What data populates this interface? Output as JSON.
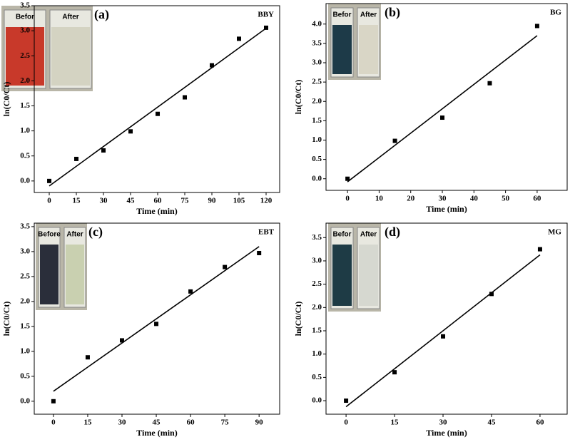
{
  "chart_data": [
    {
      "type": "scatter",
      "panel_label": "(a)",
      "name": "BBY",
      "xlabel": "Time (min)",
      "ylabel": "ln(C0/Ct)",
      "x": [
        0,
        15,
        30,
        45,
        60,
        75,
        90,
        105,
        120
      ],
      "values": [
        0,
        0.44,
        0.61,
        0.99,
        1.34,
        1.67,
        2.31,
        2.84,
        3.06
      ],
      "fit": {
        "x": [
          0,
          120
        ],
        "values": [
          -0.1,
          3.05
        ]
      },
      "xlim": [
        -8.3,
        127.5
      ],
      "ylim": [
        -0.23,
        3.5
      ],
      "xticks": [
        0,
        15,
        30,
        45,
        60,
        75,
        90,
        105,
        120
      ],
      "yticks": [
        {
          "value": 0,
          "label": "0.0"
        },
        {
          "value": 0.5,
          "label": "0.5"
        },
        {
          "value": 1,
          "label": "1.0"
        },
        {
          "value": 1.5,
          "label": "1.5"
        },
        {
          "value": 2,
          "label": "2.0"
        },
        {
          "value": 2.5,
          "label": "2.5"
        },
        {
          "value": 3,
          "label": "3.0"
        },
        {
          "value": 3.5,
          "label": "3.5"
        }
      ],
      "inset_labels": [
        "Befor",
        "After"
      ],
      "inset_colors": [
        "#c8392a",
        "#d4d3c2"
      ],
      "color": "#000000"
    },
    {
      "type": "scatter",
      "panel_label": "(b)",
      "name": "BG",
      "xlabel": "Time (min)",
      "ylabel": "ln(C0/Ct)",
      "x": [
        0,
        15,
        30,
        45,
        60
      ],
      "values": [
        0,
        0.98,
        1.58,
        2.47,
        3.95
      ],
      "fit": {
        "x": [
          0,
          60
        ],
        "values": [
          -0.08,
          3.7
        ]
      },
      "xlim": [
        -6.8,
        69.5
      ],
      "ylim": [
        -0.3,
        4.53
      ],
      "xticks": [
        0,
        10,
        20,
        30,
        40,
        50,
        60
      ],
      "yticks": [
        {
          "value": 0,
          "label": "0.0"
        },
        {
          "value": 0.5,
          "label": "0.5"
        },
        {
          "value": 1,
          "label": "1.0"
        },
        {
          "value": 1.5,
          "label": "1.5"
        },
        {
          "value": 2,
          "label": "2.0"
        },
        {
          "value": 2.5,
          "label": "2.5"
        },
        {
          "value": 3,
          "label": "3.0"
        },
        {
          "value": 3.5,
          "label": "3.5"
        },
        {
          "value": 4,
          "label": "4.0"
        }
      ],
      "inset_labels": [
        "Befor",
        "After"
      ],
      "inset_colors": [
        "#1d3a48",
        "#d9d6c6"
      ],
      "color": "#000000"
    },
    {
      "type": "scatter",
      "panel_label": "(c)",
      "name": "EBT",
      "xlabel": "Time (min)",
      "ylabel": "ln(C0/Ct)",
      "x": [
        0,
        15,
        30,
        45,
        60,
        75,
        90
      ],
      "values": [
        0,
        0.88,
        1.22,
        1.55,
        2.2,
        2.69,
        2.97
      ],
      "fit": {
        "x": [
          0,
          90
        ],
        "values": [
          0.2,
          3.1
        ]
      },
      "xlim": [
        -8.4,
        99
      ],
      "ylim": [
        -0.26,
        3.57
      ],
      "xticks": [
        0,
        15,
        30,
        45,
        60,
        75,
        90
      ],
      "yticks": [
        {
          "value": 0,
          "label": "0.0"
        },
        {
          "value": 0.5,
          "label": "0.5"
        },
        {
          "value": 1,
          "label": "1.0"
        },
        {
          "value": 1.5,
          "label": "1.5"
        },
        {
          "value": 2,
          "label": "2.0"
        },
        {
          "value": 2.5,
          "label": "2.5"
        },
        {
          "value": 3,
          "label": "3.0"
        },
        {
          "value": 3.5,
          "label": "3.5"
        }
      ],
      "inset_labels": [
        "Before",
        "After"
      ],
      "inset_colors": [
        "#2a2e3a",
        "#c9d0b0"
      ],
      "color": "#000000"
    },
    {
      "type": "scatter",
      "panel_label": "(d)",
      "name": "MG",
      "xlabel": "Time (min)",
      "ylabel": "ln(C0/Ct)",
      "x": [
        0,
        15,
        30,
        45,
        60
      ],
      "values": [
        0,
        0.61,
        1.38,
        2.29,
        3.25
      ],
      "fit": {
        "x": [
          0,
          60
        ],
        "values": [
          -0.13,
          3.13
        ]
      },
      "xlim": [
        -6.2,
        68.4
      ],
      "ylim": [
        -0.29,
        3.81
      ],
      "xticks": [
        0,
        15,
        30,
        45,
        60
      ],
      "yticks": [
        {
          "value": 0,
          "label": "0.0"
        },
        {
          "value": 0.5,
          "label": "0.5"
        },
        {
          "value": 1,
          "label": "1.0"
        },
        {
          "value": 1.5,
          "label": "1.5"
        },
        {
          "value": 2,
          "label": "2.0"
        },
        {
          "value": 2.5,
          "label": "2.5"
        },
        {
          "value": 3,
          "label": "3.0"
        },
        {
          "value": 3.5,
          "label": "3.5"
        }
      ],
      "inset_labels": [
        "Befor",
        "After"
      ],
      "inset_colors": [
        "#1e3b45",
        "#d6d8d0"
      ],
      "color": "#000000"
    }
  ]
}
